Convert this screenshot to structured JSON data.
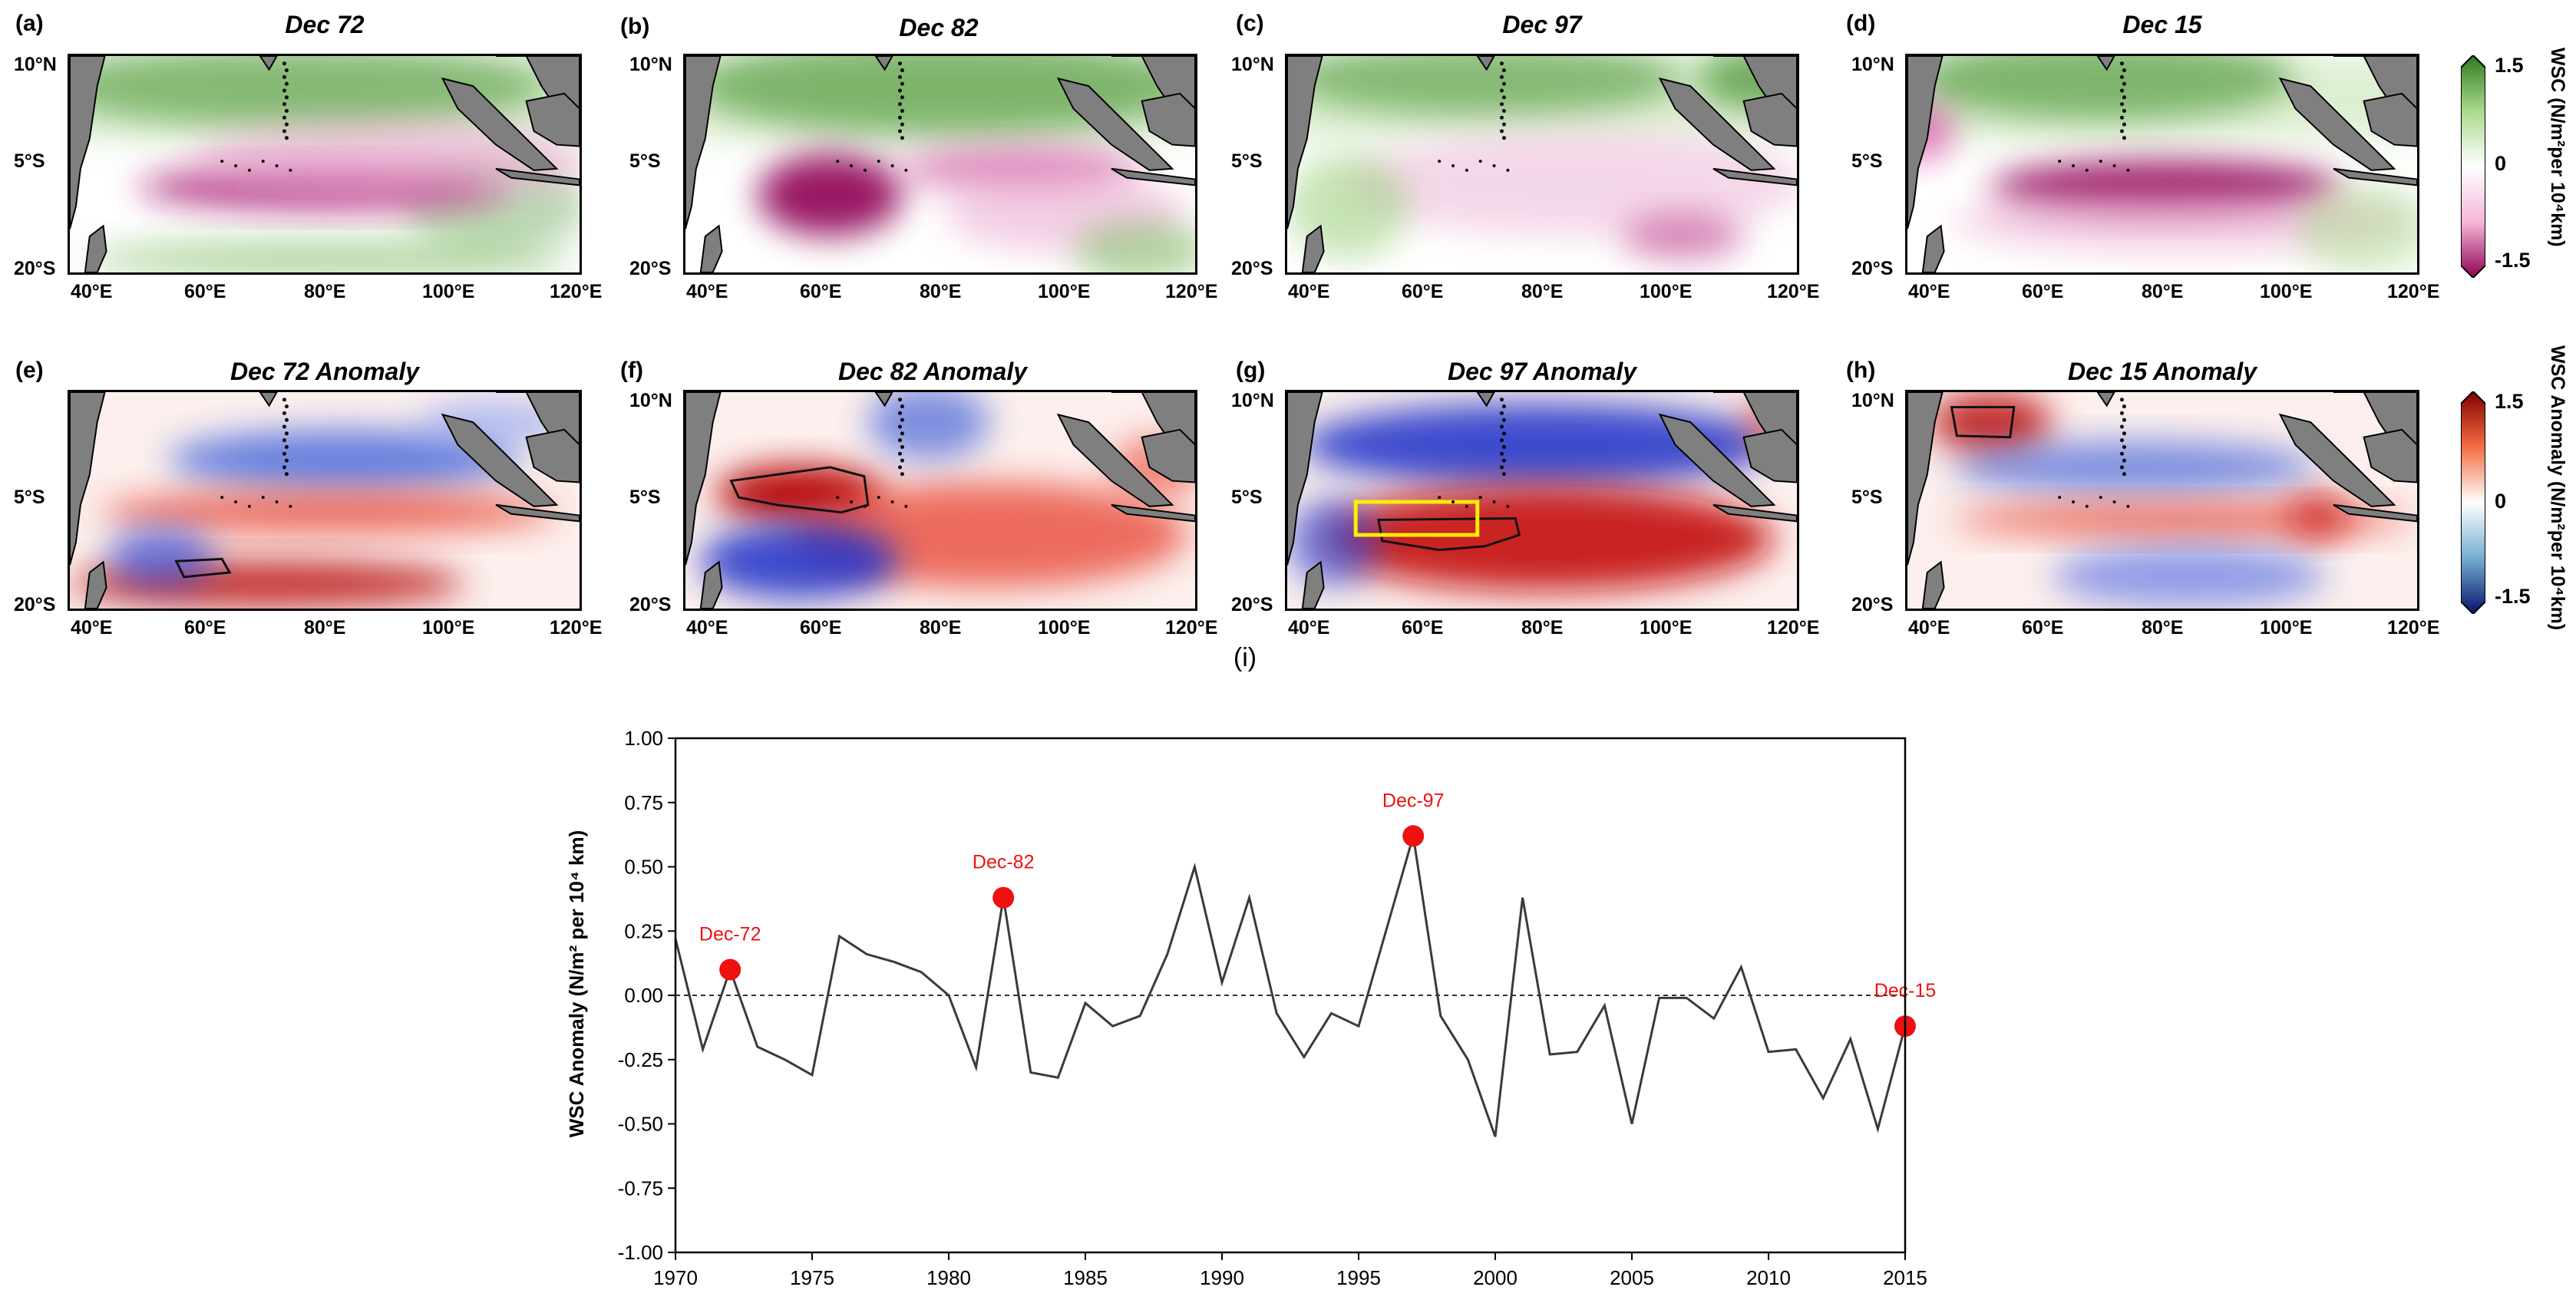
{
  "maps": [
    {
      "id": "a",
      "label": "(a)",
      "title": "Dec 72",
      "kind": "wsc"
    },
    {
      "id": "b",
      "label": "(b)",
      "title": "Dec 82",
      "kind": "wsc"
    },
    {
      "id": "c",
      "label": "(c)",
      "title": "Dec 97",
      "kind": "wsc"
    },
    {
      "id": "d",
      "label": "(d)",
      "title": "Dec 15",
      "kind": "wsc"
    },
    {
      "id": "e",
      "label": "(e)",
      "title": "Dec 72 Anomaly",
      "kind": "anom"
    },
    {
      "id": "f",
      "label": "(f)",
      "title": "Dec 82 Anomaly",
      "kind": "anom"
    },
    {
      "id": "g",
      "label": "(g)",
      "title": "Dec 97 Anomaly",
      "kind": "anom"
    },
    {
      "id": "h",
      "label": "(h)",
      "title": "Dec 15 Anomaly",
      "kind": "anom"
    }
  ],
  "map_axes": {
    "lat_ticks": [
      "10°N",
      "5°S",
      "20°S"
    ],
    "lon_ticks": [
      "40°E",
      "60°E",
      "80°E",
      "100°E",
      "120°E"
    ]
  },
  "colorbars": {
    "wsc": {
      "label": "WSC (N/m²per 10⁴km)",
      "ticks": [
        "1.5",
        "0",
        "-1.5"
      ],
      "colors": [
        "#2f7a1f",
        "#a9d98b",
        "#ffffff",
        "#f4b6d8",
        "#8e0152"
      ]
    },
    "anom": {
      "label": "WSC Anomaly (N/m²per 10⁴km)",
      "ticks": [
        "1.5",
        "0",
        "-1.5"
      ],
      "colors": [
        "#7f0000",
        "#f46d43",
        "#ffffff",
        "#74add1",
        "#08136b"
      ]
    }
  },
  "colors": {
    "land": "#7f7f7f",
    "line": "#3a3a3a",
    "marker": "#ee1111",
    "box": "#ffee00"
  },
  "chart_data": {
    "type": "line",
    "panel_label": "(i)",
    "title": "",
    "xlabel": "",
    "ylabel": "WSC Anomaly (N/m² per 10⁴ km)",
    "xlim": [
      1970,
      2015
    ],
    "ylim": [
      -1.0,
      1.0
    ],
    "xticks": [
      1970,
      1975,
      1980,
      1985,
      1990,
      1995,
      2000,
      2005,
      2010,
      2015
    ],
    "yticks": [
      "-1.00",
      "-0.75",
      "-0.50",
      "-0.25",
      "0.00",
      "0.25",
      "0.50",
      "0.75",
      "1.00"
    ],
    "zero_line": "dashed",
    "x": [
      1970,
      1971,
      1972,
      1973,
      1974,
      1975,
      1976,
      1977,
      1978,
      1979,
      1980,
      1981,
      1982,
      1983,
      1984,
      1985,
      1986,
      1987,
      1988,
      1989,
      1990,
      1991,
      1992,
      1993,
      1994,
      1995,
      1996,
      1997,
      1998,
      1999,
      2000,
      2001,
      2002,
      2003,
      2004,
      2005,
      2006,
      2007,
      2008,
      2009,
      2010,
      2011,
      2012,
      2013,
      2014,
      2015
    ],
    "values": [
      0.22,
      -0.21,
      0.1,
      -0.2,
      -0.25,
      -0.31,
      0.23,
      0.16,
      0.13,
      0.09,
      0.0,
      -0.28,
      0.38,
      -0.3,
      -0.32,
      -0.03,
      -0.12,
      -0.08,
      0.16,
      0.5,
      0.05,
      0.38,
      -0.07,
      -0.24,
      -0.07,
      -0.12,
      0.25,
      0.62,
      -0.08,
      -0.25,
      -0.55,
      0.38,
      -0.23,
      -0.22,
      -0.04,
      -0.5,
      -0.01,
      -0.01,
      -0.09,
      0.11,
      -0.22,
      -0.21,
      -0.4,
      -0.17,
      -0.52,
      -0.12
    ],
    "highlights": [
      {
        "year": 1972,
        "value": 0.1,
        "label": "Dec-72"
      },
      {
        "year": 1982,
        "value": 0.38,
        "label": "Dec-82"
      },
      {
        "year": 1997,
        "value": 0.62,
        "label": "Dec-97"
      },
      {
        "year": 2015,
        "value": -0.12,
        "label": "Dec-15"
      }
    ]
  }
}
